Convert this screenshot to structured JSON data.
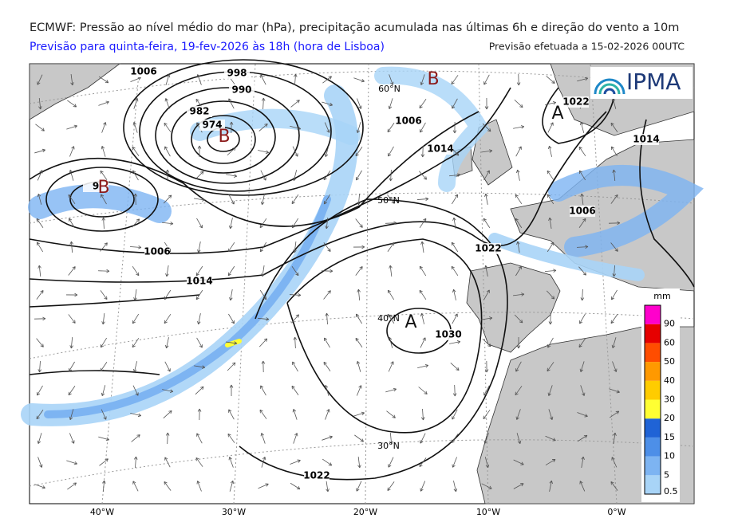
{
  "header": {
    "title": "ECMWF: Pressão ao nível médio do mar (hPa), precipitação acumulada nas últimas 6h e direção do vento a 10m",
    "subtitle": "Previsão para quinta-feira, 19-fev-2026 às 18h (hora de Lisboa)",
    "run": "Previsão efetuada a 15-02-2026 00UTC",
    "logo": "IPMA"
  },
  "map": {
    "isobar_labels": [
      "1006",
      "998",
      "990",
      "982",
      "974",
      "9",
      "1006",
      "1014",
      "1022",
      "1014",
      "1006",
      "1022",
      "1006",
      "1014",
      "1030",
      "1022"
    ],
    "centers": [
      "B",
      "A",
      "B",
      "B",
      "A"
    ],
    "latitudes": [
      "60°N",
      "50°N",
      "40°N",
      "30°N"
    ],
    "longitudes": [
      "40°W",
      "30°W",
      "20°W",
      "10°W",
      "0°W"
    ]
  },
  "colorbar": {
    "unit": "mm",
    "levels": [
      0.5,
      5,
      10,
      15,
      20,
      30,
      40,
      50,
      60,
      90
    ],
    "colors": [
      "#a8d4f7",
      "#7db4f2",
      "#4d8fe8",
      "#1f63d6",
      "#ffff33",
      "#ffcc00",
      "#ff9900",
      "#ff4d00",
      "#e60000",
      "#ff00cc"
    ]
  }
}
